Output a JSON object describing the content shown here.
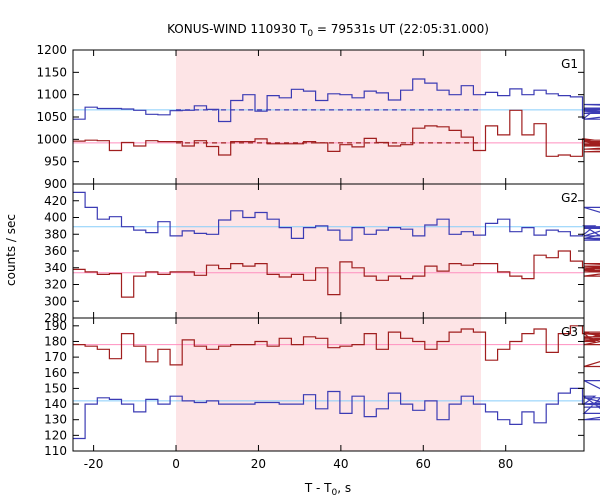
{
  "chart_data": {
    "type": "line",
    "title": {
      "prefix": "KONUS-WIND 110930 T",
      "sub": "0",
      "suffix": " = 79531s UT (22:05:31.000)"
    },
    "xlabel": {
      "prefix": "T - T",
      "sub": "0",
      "suffix": ", s"
    },
    "ylabel": "counts / sec",
    "xlim": [
      -25,
      99
    ],
    "xticks": [
      -20,
      0,
      20,
      40,
      60,
      80
    ],
    "highlight_interval": [
      0,
      74
    ],
    "colors": {
      "source": "#3b3bb4",
      "background": "#a01e1e",
      "fit_blue": "#87cefa",
      "fit_red": "#ff8fbf",
      "shade": "#fde4e6"
    },
    "step_width": 2.944,
    "panels": [
      {
        "name": "G1",
        "ylim": [
          900,
          1200
        ],
        "yticks": [
          900,
          950,
          1000,
          1050,
          1100,
          1150,
          1200
        ],
        "series": [
          {
            "role": "source",
            "color": "#3b3bb4",
            "x0": -25,
            "values": [
              1045,
              1072,
              1069,
              1069,
              1068,
              1065,
              1056,
              1055,
              1064,
              1065,
              1075,
              1067,
              1040,
              1087,
              1100,
              1063,
              1098,
              1093,
              1112,
              1108,
              1087,
              1102,
              1100,
              1093,
              1108,
              1104,
              1088,
              1110,
              1135,
              1126,
              1110,
              1100,
              1120,
              1100,
              1105,
              1098,
              1113,
              1100,
              1110,
              1102,
              1098,
              1095,
              1047,
              1066,
              1063,
              1058,
              1070,
              1067,
              1045,
              1068,
              1078,
              1070
            ]
          },
          {
            "role": "background",
            "color": "#a01e1e",
            "x0": -25,
            "values": [
              996,
              998,
              997,
              975,
              993,
              985,
              997,
              995,
              995,
              985,
              997,
              984,
              965,
              995,
              995,
              1001,
              990,
              990,
              990,
              995,
              992,
              973,
              988,
              983,
              1002,
              993,
              985,
              988,
              1025,
              1030,
              1028,
              1020,
              1005,
              975,
              1030,
              1010,
              1065,
              1010,
              1035,
              962,
              965,
              962,
              1001,
              998,
              988,
              985,
              995,
              972,
              978,
              990,
              994,
              998
            ]
          }
        ],
        "fits": [
          {
            "color": "#87cefa",
            "value": 1066,
            "x": [
              -25,
              99
            ],
            "dashed": false
          },
          {
            "color": "#3b3bb4",
            "value": 1066,
            "x": [
              0,
              74
            ],
            "dashed": true
          },
          {
            "color": "#ff8fbf",
            "value": 992,
            "x": [
              -25,
              99
            ],
            "dashed": false
          },
          {
            "color": "#a01e1e",
            "value": 992,
            "x": [
              0,
              74
            ],
            "dashed": true
          }
        ]
      },
      {
        "name": "G2",
        "ylim": [
          280,
          440
        ],
        "yticks": [
          280,
          300,
          320,
          340,
          360,
          380,
          400,
          420,
          440
        ],
        "series": [
          {
            "role": "source",
            "color": "#3b3bb4",
            "x0": -25,
            "values": [
              430,
              412,
              398,
              401,
              389,
              385,
              382,
              395,
              378,
              384,
              381,
              380,
              397,
              408,
              400,
              406,
              398,
              388,
              375,
              388,
              390,
              385,
              373,
              388,
              380,
              385,
              388,
              386,
              378,
              391,
              398,
              380,
              383,
              379,
              393,
              398,
              383,
              388,
              379,
              385,
              383,
              378,
              380,
              390,
              373,
              375,
              387,
              388,
              389,
              378,
              412,
              373
            ]
          },
          {
            "role": "background",
            "color": "#a01e1e",
            "x0": -25,
            "values": [
              338,
              335,
              332,
              333,
              305,
              330,
              335,
              332,
              335,
              335,
              331,
              343,
              339,
              345,
              342,
              345,
              332,
              329,
              332,
              325,
              340,
              308,
              347,
              340,
              330,
              325,
              330,
              327,
              330,
              342,
              336,
              345,
              343,
              345,
              345,
              335,
              330,
              327,
              355,
              352,
              360,
              348,
              340,
              338,
              340,
              337,
              335,
              342,
              337,
              330,
              345,
              340
            ]
          }
        ],
        "fits": [
          {
            "color": "#87cefa",
            "value": 389,
            "x": [
              -25,
              99
            ],
            "dashed": false
          },
          {
            "color": "#ff8fbf",
            "value": 334,
            "x": [
              -25,
              99
            ],
            "dashed": false
          }
        ]
      },
      {
        "name": "G3",
        "ylim": [
          110,
          195
        ],
        "yticks": [
          110,
          120,
          130,
          140,
          150,
          160,
          170,
          180,
          190
        ],
        "series": [
          {
            "role": "background",
            "color": "#a01e1e",
            "x0": -25,
            "values": [
              178,
              177,
              175,
              169,
              185,
              177,
              167,
              175,
              165,
              181,
              177,
              175,
              177,
              178,
              178,
              180,
              177,
              182,
              178,
              183,
              182,
              176,
              177,
              178,
              185,
              175,
              186,
              182,
              180,
              175,
              180,
              186,
              188,
              186,
              168,
              175,
              180,
              185,
              188,
              173,
              185,
              190,
              185,
              180,
              182,
              186,
              178,
              185,
              181,
              183,
              164,
              185
            ]
          },
          {
            "role": "source",
            "color": "#3b3bb4",
            "x0": -25,
            "values": [
              118,
              140,
              144,
              143,
              140,
              135,
              143,
              140,
              145,
              142,
              141,
              142,
              140,
              140,
              140,
              141,
              141,
              140,
              140,
              146,
              137,
              148,
              134,
              145,
              132,
              137,
              147,
              140,
              136,
              142,
              130,
              140,
              145,
              140,
              135,
              130,
              127,
              135,
              128,
              140,
              147,
              150,
              140,
              145,
              134,
              155,
              140,
              138,
              140,
              144,
              130,
              140
            ]
          }
        ],
        "fits": [
          {
            "color": "#ff8fbf",
            "value": 178,
            "x": [
              -25,
              99
            ],
            "dashed": false
          },
          {
            "color": "#87cefa",
            "value": 142,
            "x": [
              -25,
              99
            ],
            "dashed": false
          }
        ]
      }
    ]
  }
}
